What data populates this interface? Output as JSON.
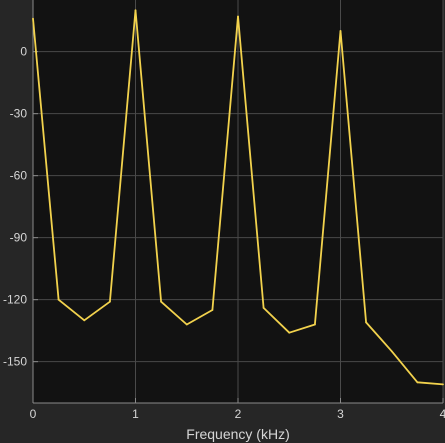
{
  "chart_data": {
    "type": "line",
    "title": "",
    "xlabel": "Frequency (kHz)",
    "ylabel": "",
    "xlim": [
      0,
      4
    ],
    "ylim": [
      -170,
      25
    ],
    "grid": true,
    "xticks": [
      0,
      1,
      2,
      3,
      4
    ],
    "xtick_labels": [
      "0",
      "1",
      "2",
      "3",
      "4"
    ],
    "yticks": [
      0,
      -30,
      -60,
      -90,
      -120,
      -150
    ],
    "ytick_labels": [
      "0",
      "-30",
      "-60",
      "-90",
      "-120",
      "-150"
    ],
    "series": [
      {
        "name": "",
        "x": [
          0,
          0.25,
          0.5,
          0.75,
          1.0,
          1.25,
          1.5,
          1.75,
          2.0,
          2.25,
          2.5,
          2.75,
          3.0,
          3.25,
          3.5,
          3.75,
          4.0
        ],
        "y": [
          16,
          -120,
          -130,
          -121,
          20,
          -121,
          -132,
          -125,
          17,
          -124,
          -136,
          -132,
          10,
          -131,
          -145,
          -160,
          -161
        ]
      }
    ]
  },
  "colors": {
    "background": "#262626",
    "plot_area": "#121212",
    "grid": "#4a4a4a",
    "axes": "#8a8a8a",
    "line": "#f2d24d"
  }
}
